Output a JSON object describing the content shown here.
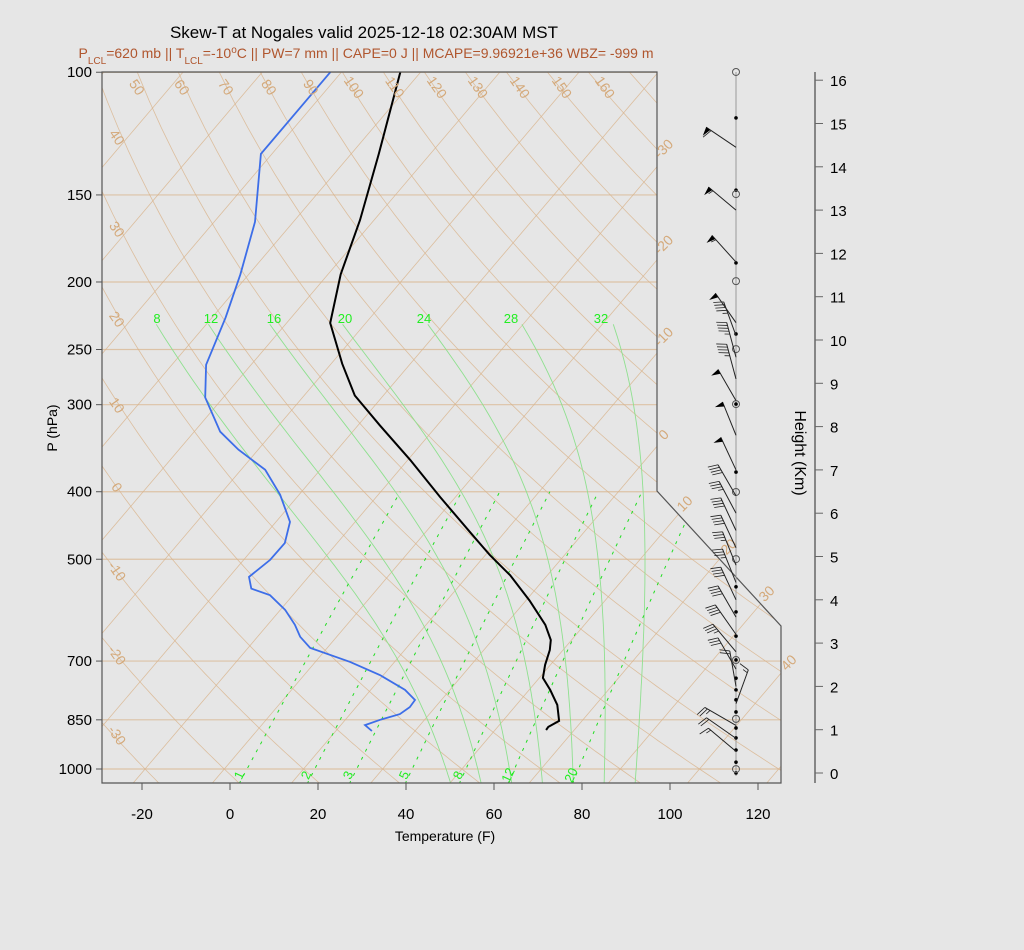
{
  "chart_data": {
    "type": "skew-t",
    "title": "Skew-T at Nogales valid 2025-12-18 02:30AM MST",
    "subtitle": [
      {
        "t": "P"
      },
      {
        "t": "LCL",
        "sub": true
      },
      {
        "t": "=620 mb || T"
      },
      {
        "t": "LCL",
        "sub": true
      },
      {
        "t": "=-10"
      },
      {
        "t": "o",
        "sup": true
      },
      {
        "t": "C || PW=7 mm || CAPE=0 J || MCAPE=9.96921e+36 WBZ= -999 m"
      }
    ],
    "xlabel": "Temperature (F)",
    "ylabel": "P (hPa)",
    "y2label": "Height (Km)",
    "xlim": [
      -28,
      125
    ],
    "ylim": [
      1047,
      100
    ],
    "y_scale": "log",
    "xticks": [
      -20,
      0,
      20,
      40,
      60,
      80,
      100,
      120
    ],
    "yticks": [
      1000,
      850,
      700,
      500,
      400,
      300,
      250,
      200,
      150,
      100
    ],
    "y2ticks": [
      0,
      1,
      2,
      3,
      4,
      5,
      6,
      7,
      8,
      9,
      10,
      11,
      12,
      13,
      14,
      15,
      16
    ],
    "dry_adiabat_labels_top": [
      "50",
      "60",
      "70",
      "80",
      "90",
      "100",
      "110",
      "120",
      "130",
      "140",
      "150",
      "160"
    ],
    "dry_adiabat_labels_left": [
      "40",
      "30",
      "20",
      "10",
      "0",
      "-10",
      "-20",
      "-30"
    ],
    "isotherm_labels_right_C": [
      "-30",
      "-20",
      "-10",
      "0",
      "10",
      "20",
      "30",
      "40"
    ],
    "moist_adiabat_labels_C": [
      "8",
      "12",
      "16",
      "20",
      "24",
      "28",
      "32"
    ],
    "mixing_ratio_labels_gkg": [
      "1",
      "2",
      "3",
      "5",
      "8",
      "12",
      "20"
    ],
    "colors": {
      "temperature": "#000000",
      "dewpoint": "#3d6ee8",
      "grid": "#d9b48c",
      "moist_adiabat": "#8fe08f",
      "mixing_ratio": "#22dd22",
      "subtitle": "#b0562e"
    },
    "series": [
      {
        "kind": "temperature",
        "units": "F",
        "points": [
          [
            879,
            61.6
          ],
          [
            870,
            61.5
          ],
          [
            853,
            62.8
          ],
          [
            809,
            59.3
          ],
          [
            770,
            54.8
          ],
          [
            740,
            50.8
          ],
          [
            709,
            48.8
          ],
          [
            675,
            47.0
          ],
          [
            653,
            45.3
          ],
          [
            621,
            41.1
          ],
          [
            573,
            32.8
          ],
          [
            527,
            23.5
          ],
          [
            493,
            15.0
          ],
          [
            458,
            6.3
          ],
          [
            407,
            -7.5
          ],
          [
            360,
            -21.5
          ],
          [
            321,
            -35.1
          ],
          [
            291,
            -46.5
          ],
          [
            262,
            -55.5
          ],
          [
            229,
            -66.1
          ],
          [
            195,
            -73.1
          ],
          [
            163,
            -79.2
          ],
          [
            131,
            -87.7
          ],
          [
            100,
            -98.6
          ]
        ]
      },
      {
        "kind": "dewpoint",
        "units": "F",
        "points": [
          [
            882,
            22.2
          ],
          [
            865,
            19.5
          ],
          [
            850,
            21.9
          ],
          [
            834,
            25.3
          ],
          [
            815,
            26.2
          ],
          [
            796,
            26.0
          ],
          [
            770,
            21.8
          ],
          [
            733,
            13.2
          ],
          [
            702,
            3.9
          ],
          [
            670,
            -7.9
          ],
          [
            646,
            -12.3
          ],
          [
            621,
            -15.8
          ],
          [
            591,
            -20.9
          ],
          [
            563,
            -27.2
          ],
          [
            551,
            -32.7
          ],
          [
            530,
            -35.5
          ],
          [
            501,
            -34.0
          ],
          [
            474,
            -33.9
          ],
          [
            442,
            -36.8
          ],
          [
            404,
            -44.3
          ],
          [
            372,
            -52.5
          ],
          [
            348,
            -62.5
          ],
          [
            328,
            -70.1
          ],
          [
            293,
            -80.1
          ],
          [
            263,
            -86.2
          ],
          [
            225,
            -90.9
          ],
          [
            195,
            -95.9
          ],
          [
            164,
            -102.7
          ],
          [
            131,
            -114.5
          ],
          [
            100,
            -114.5
          ]
        ]
      }
    ],
    "wind_barbs": [
      {
        "km": 14.45,
        "dir": 304,
        "kt": 60
      },
      {
        "km": 13.0,
        "dir": 310,
        "kt": 55
      },
      {
        "km": 11.8,
        "dir": 318,
        "kt": 55
      },
      {
        "km": 10.4,
        "dir": 325,
        "kt": 50
      },
      {
        "km": 10.1,
        "dir": 340,
        "kt": 45
      },
      {
        "km": 9.6,
        "dir": 345,
        "kt": 45
      },
      {
        "km": 9.1,
        "dir": 345,
        "kt": 45
      },
      {
        "km": 8.6,
        "dir": 330,
        "kt": 50
      },
      {
        "km": 7.8,
        "dir": 338,
        "kt": 50
      },
      {
        "km": 7.0,
        "dir": 335,
        "kt": 50
      },
      {
        "km": 6.4,
        "dir": 330,
        "kt": 40
      },
      {
        "km": 6.0,
        "dir": 332,
        "kt": 35
      },
      {
        "km": 5.6,
        "dir": 335,
        "kt": 40
      },
      {
        "km": 5.2,
        "dir": 335,
        "kt": 40
      },
      {
        "km": 4.8,
        "dir": 338,
        "kt": 35
      },
      {
        "km": 4.4,
        "dir": 338,
        "kt": 35
      },
      {
        "km": 4.0,
        "dir": 335,
        "kt": 40
      },
      {
        "km": 3.6,
        "dir": 330,
        "kt": 40
      },
      {
        "km": 3.2,
        "dir": 325,
        "kt": 40
      },
      {
        "km": 2.8,
        "dir": 320,
        "kt": 35
      },
      {
        "km": 2.4,
        "dir": 330,
        "kt": 30
      },
      {
        "km": 2.0,
        "dir": 350,
        "kt": 20
      },
      {
        "km": 1.6,
        "dir": 20,
        "kt": 15
      },
      {
        "km": 1.1,
        "dir": 300,
        "kt": 25
      },
      {
        "km": 0.8,
        "dir": 305,
        "kt": 20
      },
      {
        "km": 0.5,
        "dir": 310,
        "kt": 15
      }
    ],
    "height_dots_km": [
      15.13,
      13.46,
      11.78,
      10.14,
      8.52,
      6.95,
      4.3,
      3.72,
      3.16,
      2.61,
      2.19,
      1.92,
      1.69,
      1.41,
      1.04,
      0.81,
      0.53,
      0.25,
      0.0
    ],
    "height_circles_km": [
      16.19,
      13.37,
      11.36,
      9.79,
      8.52,
      6.49,
      4.94,
      2.61,
      1.25,
      0.09
    ]
  }
}
